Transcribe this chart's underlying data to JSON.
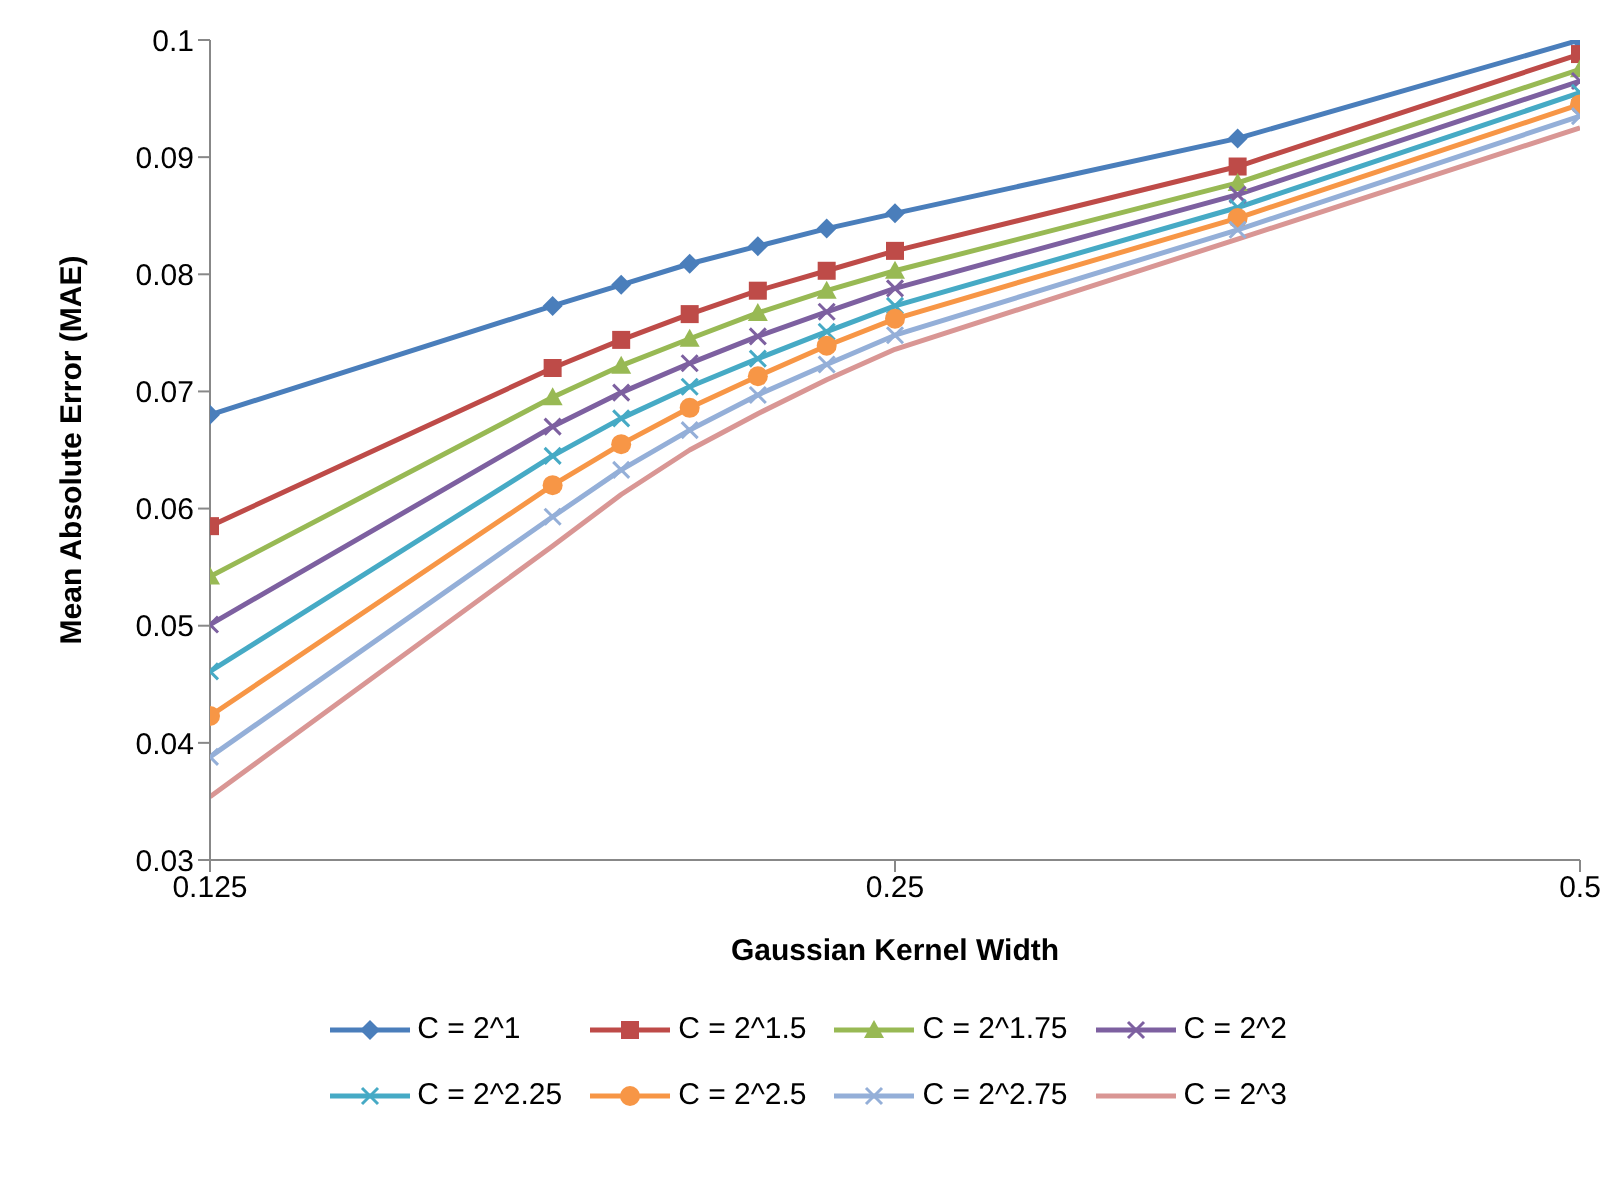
{
  "chart_data": {
    "type": "line",
    "xlabel": "Gaussian Kernel Width",
    "ylabel": "Mean Absolute Error (MAE)",
    "x": [
      0.125,
      0.1768,
      0.1895,
      0.2031,
      0.2176,
      0.2333,
      0.25,
      0.3536,
      0.5
    ],
    "xlim": [
      0.125,
      0.5
    ],
    "xticks": [
      0.125,
      0.25,
      0.5
    ],
    "log": "x",
    "ylim": [
      0.03,
      0.1
    ],
    "yticks": [
      0.03,
      0.04,
      0.05,
      0.06,
      0.07,
      0.08,
      0.09,
      0.1
    ],
    "grid": false,
    "legend": "bottom",
    "line_style": "solid",
    "series": [
      {
        "name": "C = 2^1",
        "color": "#4a7ebb",
        "marker": "diamond",
        "values": [
          0.068,
          0.0773,
          0.0791,
          0.0809,
          0.0824,
          0.0839,
          0.0852,
          0.0916,
          0.1
        ]
      },
      {
        "name": "C = 2^1.5",
        "color": "#be4b48",
        "marker": "square",
        "values": [
          0.0585,
          0.072,
          0.0744,
          0.0766,
          0.0786,
          0.0803,
          0.082,
          0.0892,
          0.0988
        ]
      },
      {
        "name": "C = 2^1.75",
        "color": "#98b954",
        "marker": "triangle",
        "values": [
          0.0542,
          0.0695,
          0.0722,
          0.0745,
          0.0767,
          0.0786,
          0.0803,
          0.0878,
          0.0975
        ]
      },
      {
        "name": "C = 2^2",
        "color": "#7d60a0",
        "marker": "cross",
        "values": [
          0.0501,
          0.067,
          0.0699,
          0.0724,
          0.0747,
          0.0768,
          0.0788,
          0.0868,
          0.0965
        ]
      },
      {
        "name": "C = 2^2.25",
        "color": "#46aac5",
        "marker": "cross",
        "values": [
          0.0461,
          0.0645,
          0.0677,
          0.0704,
          0.0728,
          0.0751,
          0.0773,
          0.0857,
          0.0955
        ]
      },
      {
        "name": "C = 2^2.5",
        "color": "#f79646",
        "marker": "circle",
        "values": [
          0.0423,
          0.062,
          0.0655,
          0.0686,
          0.0713,
          0.0739,
          0.0762,
          0.0848,
          0.0945
        ]
      },
      {
        "name": "C = 2^2.75",
        "color": "#94afd8",
        "marker": "cross",
        "values": [
          0.0388,
          0.0593,
          0.0633,
          0.0667,
          0.0697,
          0.0723,
          0.0748,
          0.0838,
          0.0935
        ]
      },
      {
        "name": "C = 2^3",
        "color": "#d99694",
        "marker": "none",
        "values": [
          0.0354,
          0.0568,
          0.0612,
          0.065,
          0.0681,
          0.071,
          0.0736,
          0.083,
          0.0925
        ]
      }
    ]
  }
}
